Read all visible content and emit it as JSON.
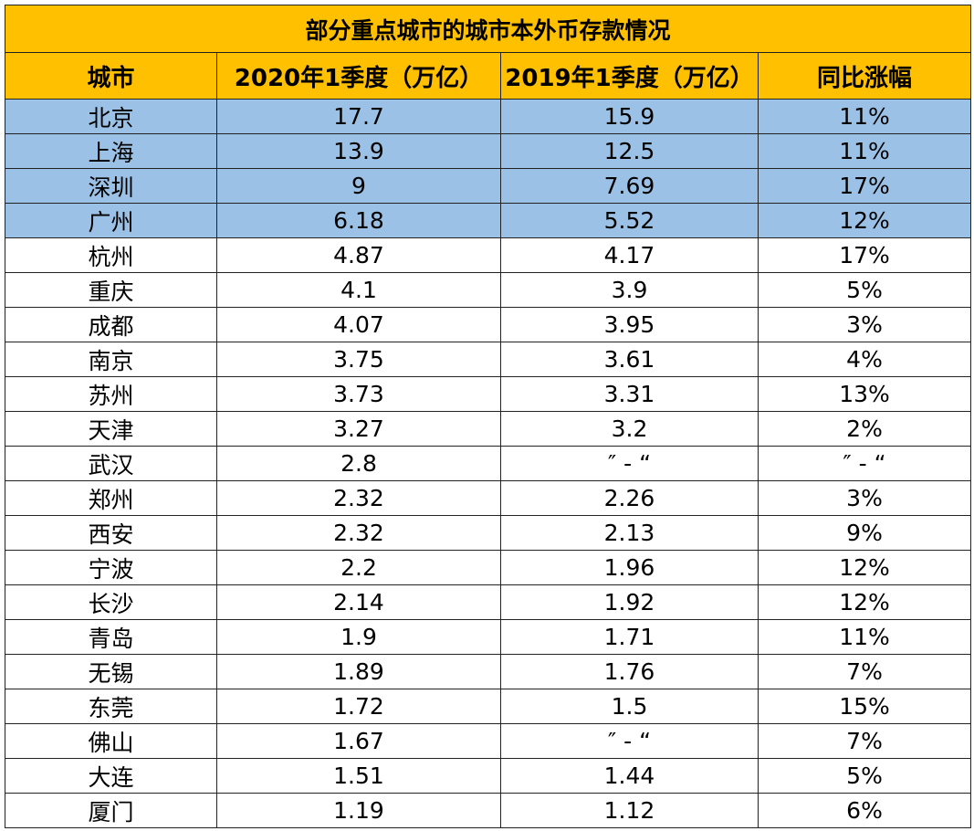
{
  "table": {
    "title": "部分重点城市的城市本外币存款情况",
    "header": [
      "城市",
      "2020年1季度（万亿）",
      "2019年1季度（万亿）",
      "同比涨幅"
    ],
    "rows": [
      [
        "北京",
        "17.7",
        "15.9",
        "11%"
      ],
      [
        "上海",
        "13.9",
        "12.5",
        "11%"
      ],
      [
        "深圳",
        "9",
        "7.69",
        "17%"
      ],
      [
        "广州",
        "6.18",
        "5.52",
        "12%"
      ],
      [
        "杭州",
        "4.87",
        "4.17",
        "17%"
      ],
      [
        "重庆",
        "4.1",
        "3.9",
        "5%"
      ],
      [
        "成都",
        "4.07",
        "3.95",
        "3%"
      ],
      [
        "南京",
        "3.75",
        "3.61",
        "4%"
      ],
      [
        "苏州",
        "3.73",
        "3.31",
        "13%"
      ],
      [
        "天津",
        "3.27",
        "3.2",
        "2%"
      ],
      [
        "武汉",
        "2.8",
        "″ - “",
        "″ - “"
      ],
      [
        "郑州",
        "2.32",
        "2.26",
        "3%"
      ],
      [
        "西安",
        "2.32",
        "2.13",
        "9%"
      ],
      [
        "宁波",
        "2.2",
        "1.96",
        "12%"
      ],
      [
        "长沙",
        "2.14",
        "1.92",
        "12%"
      ],
      [
        "青岛",
        "1.9",
        "1.71",
        "11%"
      ],
      [
        "无锡",
        "1.89",
        "1.76",
        "7%"
      ],
      [
        "东莞",
        "1.72",
        "1.5",
        "15%"
      ],
      [
        "佛山",
        "1.67",
        "″ - “",
        "7%"
      ],
      [
        "大连",
        "1.51",
        "1.44",
        "5%"
      ],
      [
        "厦门",
        "1.19",
        "1.12",
        "6%"
      ]
    ]
  }
}
